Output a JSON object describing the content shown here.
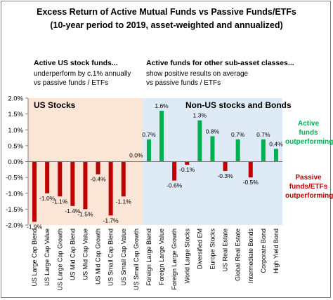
{
  "title_line1": "Excess Return of Active Mutual Funds vs Passive Funds/ETFs",
  "title_line2": "(10-year period to 2019, asset-weighted and annualized)",
  "notes": {
    "left_head": "Active US stock funds...",
    "left_body_1": "underperform by c.1% annually",
    "left_body_2": "vs passive funds / ETFs",
    "right_head": "Active funds for other sub-asset classes...",
    "right_body_1": "show positive results on average",
    "right_body_2": "vs passive funds / ETFs"
  },
  "regions": {
    "left_label": "US Stocks",
    "right_label": "Non-US stocks and Bonds",
    "left_color": "#fbe5d6",
    "right_color": "#deebf7"
  },
  "side_labels": {
    "positive_1": "Active",
    "positive_2": "funds",
    "positive_3": "outperforming",
    "positive_color": "#00b050",
    "negative_1": "Passive",
    "negative_2": "funds/ETFs",
    "negative_3": "outperforming",
    "negative_color": "#c00000"
  },
  "chart_data": {
    "type": "bar",
    "categories": [
      "US Large Cap Blend",
      "US Large Cap Value",
      "US Large Cap Growth",
      "US Mid Cap Blend",
      "US Mid Cap Value",
      "US Mid Cap Growth",
      "US Small Cap Blend",
      "US Small Cap Value",
      "US Small Cap Growth",
      "Foreign Large Blend",
      "Foreign Large Value",
      "Foreign Large Growth",
      "World Large Stocks",
      "Diversified EM",
      "Europe Stocks",
      "US Real Estate",
      "Global Real Estate",
      "Intermediate Bonds",
      "Corporate Bond",
      "High Yield Bond"
    ],
    "values": [
      -1.9,
      -1.0,
      -1.1,
      -1.4,
      -1.5,
      -0.4,
      -1.7,
      -1.1,
      0.0,
      0.7,
      1.6,
      -0.6,
      -0.1,
      1.3,
      0.8,
      -0.3,
      0.7,
      -0.5,
      0.7,
      0.4
    ],
    "data_labels": [
      "-1.9%",
      "-1.0%",
      "-1.1%",
      "-1.4%",
      "-1.5%",
      "-0.4%",
      "-1.7%",
      "-1.1%",
      "0.0%",
      "0.7%",
      "1.6%",
      "-0.6%",
      "-0.1%",
      "1.3%",
      "0.8%",
      "-0.3%",
      "0.7%",
      "-0.5%",
      "0.7%",
      "0.4%"
    ],
    "ylim": [
      -2.0,
      2.0
    ],
    "yticks": [
      -2.0,
      -1.5,
      -1.0,
      -0.5,
      0.0,
      0.5,
      1.0,
      1.5,
      2.0
    ],
    "ytick_labels": [
      "-2.0%",
      "-1.5%",
      "-1.0%",
      "-0.5%",
      "0.0%",
      "0.5%",
      "1.0%",
      "1.5%",
      "2.0%"
    ],
    "positive_color": "#00b050",
    "negative_color": "#c00000",
    "us_count": 9,
    "grid": false
  }
}
